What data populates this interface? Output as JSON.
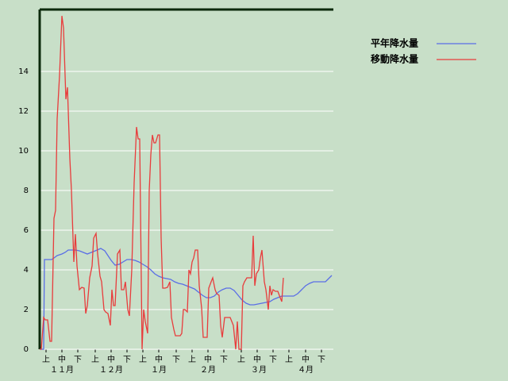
{
  "chart_data": {
    "type": "line",
    "xlim": [
      0,
      185
    ],
    "ylim": [
      0,
      17.12
    ],
    "yticks": [
      0,
      2,
      4,
      6,
      8,
      10,
      12,
      14
    ],
    "grid": true,
    "xticks": [
      {
        "value": 4,
        "label": "上"
      },
      {
        "value": 14,
        "label": "中"
      },
      {
        "value": 24,
        "label": "下"
      },
      {
        "value": 35,
        "label": "上"
      },
      {
        "value": 45,
        "label": "中"
      },
      {
        "value": 55,
        "label": "下"
      },
      {
        "value": 65,
        "label": "上"
      },
      {
        "value": 75,
        "label": "中"
      },
      {
        "value": 86,
        "label": "下"
      },
      {
        "value": 96,
        "label": "上"
      },
      {
        "value": 106,
        "label": "中"
      },
      {
        "value": 116,
        "label": "下"
      },
      {
        "value": 127,
        "label": "上"
      },
      {
        "value": 137,
        "label": "中"
      },
      {
        "value": 147,
        "label": "下"
      },
      {
        "value": 157,
        "label": "上"
      },
      {
        "value": 167.5,
        "label": "中"
      },
      {
        "value": 177.5,
        "label": "下"
      }
    ],
    "x_group_labels": [
      {
        "value": 14,
        "label": "１１月"
      },
      {
        "value": 45,
        "label": "１２月"
      },
      {
        "value": 75,
        "label": "１月"
      },
      {
        "value": 106,
        "label": "２月"
      },
      {
        "value": 138,
        "label": "３月"
      },
      {
        "value": 167.5,
        "label": "４月"
      }
    ],
    "series": [
      {
        "name": "平年降水量",
        "color": "#5a6ee6",
        "x": [
          0,
          2.5,
          3,
          5,
          7.5,
          9,
          11,
          14,
          16,
          18,
          20,
          22.5,
          25,
          27.5,
          30,
          32.5,
          35,
          38.5,
          41,
          43,
          45,
          47.5,
          50,
          52.5,
          55,
          57.5,
          60,
          62.5,
          65,
          67.5,
          70,
          72.5,
          75,
          77.5,
          80,
          82.5,
          85,
          87.5,
          90,
          92.5,
          95,
          97.5,
          100,
          102.5,
          105,
          107.5,
          110,
          112.5,
          115,
          117.5,
          120,
          122.5,
          125,
          127.5,
          130,
          132.5,
          135,
          137.5,
          140,
          142.5,
          145,
          147.5,
          150,
          152.5,
          155,
          157.5,
          160,
          162.5,
          165,
          167.5,
          170,
          172.5,
          175,
          177.5,
          180,
          182.5,
          184
        ],
        "values": [
          0,
          0,
          4.52,
          4.52,
          4.52,
          4.6,
          4.72,
          4.8,
          4.88,
          5.0,
          5.0,
          5.0,
          4.96,
          4.88,
          4.8,
          4.88,
          4.96,
          5.08,
          4.96,
          4.72,
          4.48,
          4.24,
          4.28,
          4.4,
          4.52,
          4.52,
          4.48,
          4.4,
          4.28,
          4.16,
          4.0,
          3.8,
          3.68,
          3.6,
          3.56,
          3.52,
          3.4,
          3.32,
          3.28,
          3.2,
          3.12,
          3.04,
          2.88,
          2.72,
          2.6,
          2.6,
          2.68,
          2.88,
          3.0,
          3.08,
          3.08,
          2.96,
          2.72,
          2.48,
          2.32,
          2.24,
          2.24,
          2.28,
          2.32,
          2.36,
          2.4,
          2.52,
          2.6,
          2.68,
          2.68,
          2.68,
          2.68,
          2.8,
          3.0,
          3.2,
          3.32,
          3.4,
          3.4,
          3.4,
          3.4,
          3.6,
          3.72
        ]
      },
      {
        "name": "移動降水量",
        "color": "#e83c3c",
        "x": [
          0,
          1,
          2.5,
          3.5,
          5,
          6.5,
          7.5,
          9,
          10,
          11,
          12.5,
          14,
          15,
          16.5,
          17.5,
          19,
          20,
          21.5,
          22.5,
          23.5,
          25,
          26.5,
          28,
          29,
          30,
          31.5,
          33,
          34,
          35.5,
          36.5,
          38,
          39,
          40.5,
          41.5,
          43,
          44.5,
          45.5,
          46.5,
          47.5,
          49,
          50.5,
          51.5,
          53,
          54,
          55.5,
          56.5,
          58,
          59.5,
          61,
          62,
          63,
          64.5,
          65.5,
          66.5,
          68,
          69,
          70,
          71,
          72,
          73,
          74.5,
          75.5,
          76.5,
          77.5,
          79,
          80.5,
          82,
          83,
          84.5,
          85.5,
          87,
          88.5,
          89.5,
          90.5,
          91.5,
          93,
          94,
          95,
          96,
          97,
          98,
          99.5,
          100.5,
          102,
          103,
          104,
          105.5,
          106.5,
          108,
          109,
          110.5,
          111.5,
          113,
          114,
          115,
          116.5,
          117.5,
          119,
          120,
          121,
          122,
          123.5,
          124.5,
          125.5,
          127,
          128,
          129,
          130.5,
          132,
          133.5,
          134.5,
          135.5,
          136.5,
          138,
          139,
          140,
          141.5,
          142.5,
          144,
          145,
          146,
          147,
          148.5,
          150,
          151.5,
          152.5,
          153.5
        ],
        "values": [
          0,
          0,
          1.6,
          1.48,
          1.48,
          0.4,
          0.4,
          6.6,
          7.0,
          11.6,
          13.8,
          16.8,
          16.2,
          12.6,
          13.2,
          9.6,
          8.0,
          4.4,
          5.8,
          4.2,
          3.0,
          3.12,
          3.08,
          1.8,
          2.2,
          3.6,
          4.2,
          5.6,
          5.84,
          4.8,
          3.68,
          3.4,
          2.0,
          1.88,
          1.8,
          1.2,
          3.0,
          2.2,
          2.2,
          4.8,
          5.0,
          3.0,
          3.0,
          3.4,
          2.0,
          1.68,
          4.0,
          8.4,
          11.2,
          10.6,
          10.6,
          0,
          2.0,
          1.4,
          0.8,
          8.0,
          9.8,
          10.8,
          10.4,
          10.4,
          10.8,
          10.8,
          5.6,
          3.08,
          3.08,
          3.12,
          3.4,
          1.6,
          1.0,
          0.68,
          0.68,
          0.68,
          0.8,
          2.0,
          2.0,
          1.88,
          4.0,
          3.8,
          4.4,
          4.6,
          5.0,
          5.0,
          3.2,
          2.08,
          0.6,
          0.6,
          0.6,
          3.08,
          3.4,
          3.6,
          3.0,
          2.8,
          2.72,
          1.2,
          0.6,
          1.6,
          1.6,
          1.6,
          1.6,
          1.4,
          1.2,
          0,
          1.4,
          0,
          0,
          3.2,
          3.4,
          3.6,
          3.6,
          3.6,
          5.72,
          3.2,
          3.8,
          4.0,
          4.6,
          5.0,
          3.4,
          3.0,
          2.0,
          3.2,
          2.72,
          3.0,
          2.92,
          2.92,
          2.6,
          2.4,
          3.6
        ]
      }
    ]
  }
}
